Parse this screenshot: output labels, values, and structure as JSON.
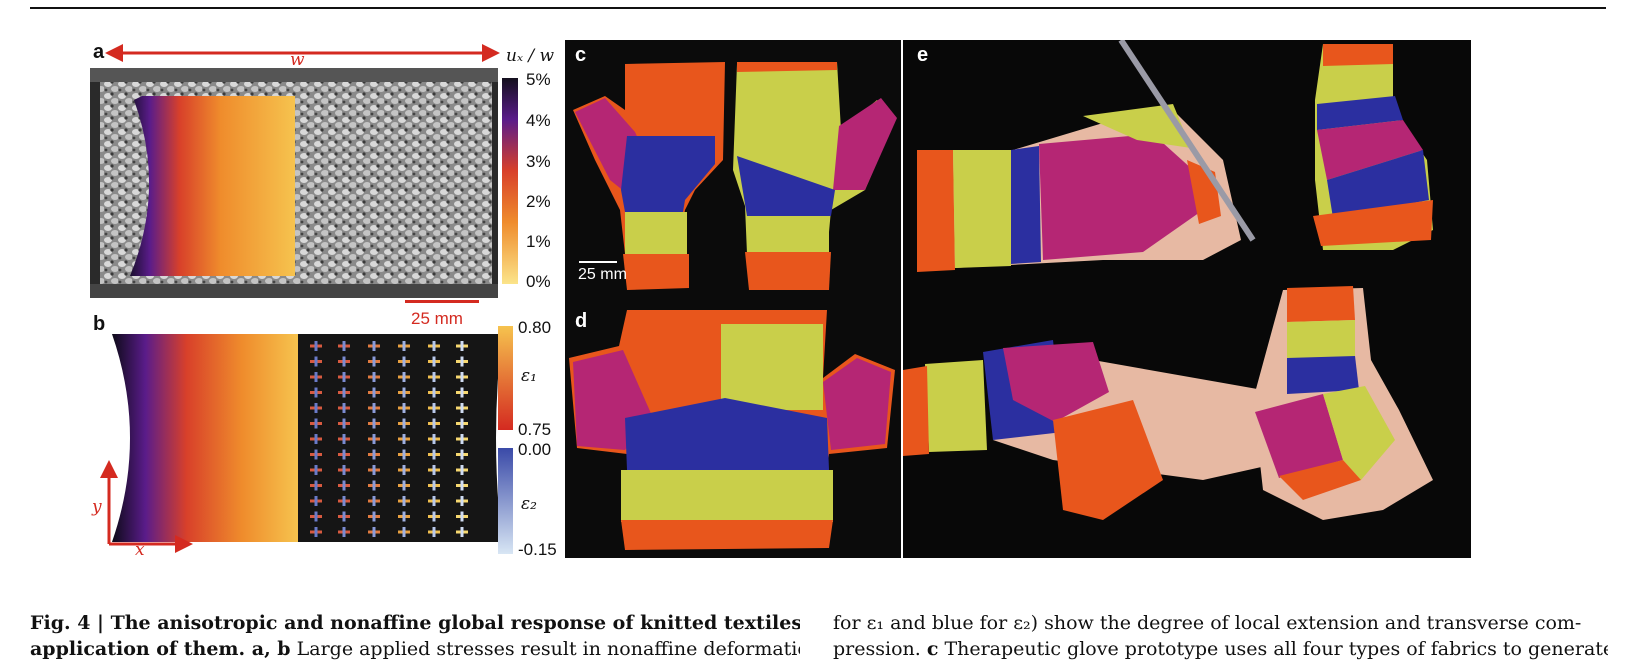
{
  "figure": {
    "panel_a": {
      "label": "a",
      "width_label": "w",
      "colorbar_title": "uₓ / w",
      "colorbar_ticks": [
        "5%",
        "4%",
        "3%",
        "2%",
        "1%",
        "0%"
      ],
      "scale_bar": "25 mm"
    },
    "panel_b": {
      "label": "b",
      "eps1_label": "ε₁",
      "eps1_ticks": [
        "0.80",
        "0.75"
      ],
      "eps2_label": "ε₂",
      "eps2_ticks": [
        "0.00",
        "-0.15"
      ],
      "axis_x": "x",
      "axis_y": "y"
    },
    "panel_c": {
      "label": "c",
      "scale_bar": "25 mm"
    },
    "panel_d": {
      "label": "d"
    },
    "panel_e": {
      "label": "e"
    }
  },
  "caption": {
    "fig_label": "Fig. 4 | ",
    "title_line1": "The anisotropic and nonaffine global response of knitted textiles and an",
    "title_line2": "application of them. a, b",
    "text_line2": " Large applied stresses result in nonaffine deformations",
    "right_line1": "for ε₁ and blue for ε₂) show the degree of local extension and transverse com-",
    "right_line2_bold": "c",
    "right_line2_prefix": "pression. ",
    "right_line2_text": " Therapeutic glove prototype uses all four types of fabrics to generate"
  },
  "colors": {
    "accent_red": "#d42a20",
    "glove_orange": "#e8561c",
    "glove_yellow": "#c9cf4a",
    "glove_magenta": "#b52674",
    "glove_blue": "#2b2fa0"
  }
}
